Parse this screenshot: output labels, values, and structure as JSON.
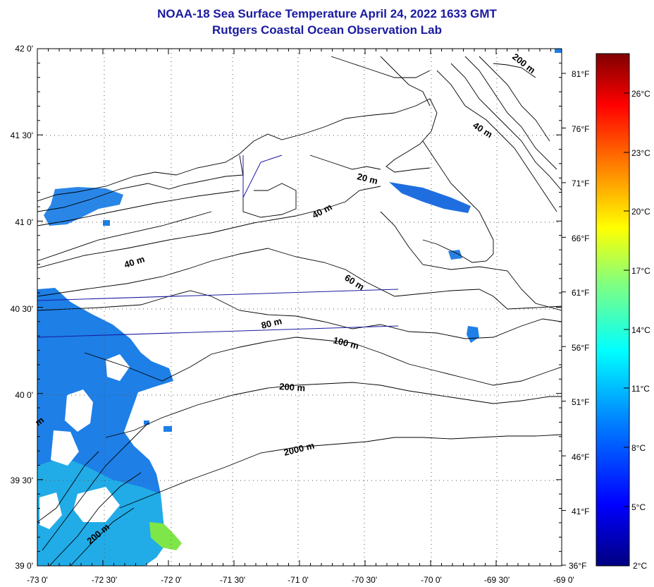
{
  "title": "NOAA-18 Sea Surface Temperature April 24, 2022 1633 GMT",
  "subtitle": "Rutgers Coastal Ocean Observation Lab",
  "lat_ticks": [
    "42 0'",
    "41 30'",
    "41 0'",
    "40 30'",
    "40 0'",
    "39 30'",
    "39 0'"
  ],
  "lon_ticks": [
    "-73 0'",
    "-72 30'",
    "-72 0'",
    "-71 30'",
    "-71 0'",
    "-70 30'",
    "-70 0'",
    "-69 30'",
    "-69 0'"
  ],
  "fahrenheit_ticks": [
    "81°F",
    "76°F",
    "71°F",
    "66°F",
    "61°F",
    "56°F",
    "51°F",
    "46°F",
    "41°F",
    "36°F"
  ],
  "celsius_ticks": [
    "26°C",
    "23°C",
    "20°C",
    "17°C",
    "14°C",
    "11°C",
    "8°C",
    "5°C",
    "2°C"
  ],
  "isobath_labels": [
    "20 m",
    "40 m",
    "40 m",
    "40 m",
    "60 m",
    "80 m",
    "100 m",
    "200 m",
    "200 m",
    "200 m",
    "2000 m",
    "m"
  ],
  "colors": {
    "title": "#1a1aa0",
    "sst_blue": "#1e7fe6",
    "sst_cyan": "#22b4e6",
    "sst_green": "#7fe64a"
  },
  "colorbar": {
    "min_c": 2,
    "max_c": 28,
    "stops": [
      "#000080",
      "#0000ff",
      "#0080ff",
      "#00ffff",
      "#80ff80",
      "#ffff00",
      "#ff8000",
      "#ff0000",
      "#800000"
    ]
  }
}
